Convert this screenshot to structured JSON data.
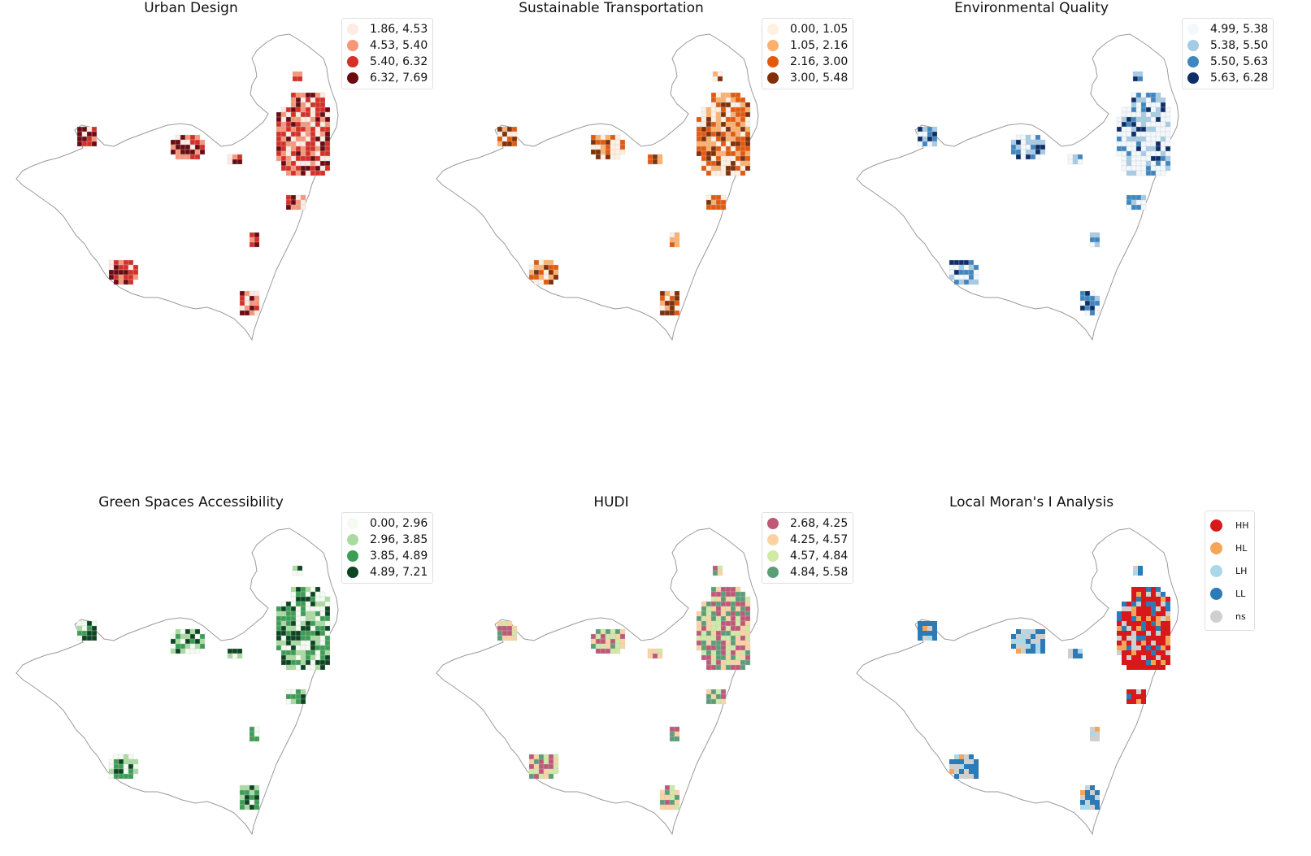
{
  "panels": [
    {
      "title": "Urban Design",
      "palette": [
        "#fdebe4",
        "#f6977a",
        "#d62f27",
        "#6c0a12"
      ],
      "legend": [
        "1.86, 4.53",
        "4.53, 5.40",
        "5.40, 6.32",
        "6.32, 7.69"
      ]
    },
    {
      "title": "Sustainable Transportation",
      "palette": [
        "#fff1e2",
        "#fbb06e",
        "#e35a0e",
        "#80300a"
      ],
      "legend": [
        "0.00, 1.05",
        "1.05, 2.16",
        "2.16, 3.00",
        "3.00, 5.48"
      ]
    },
    {
      "title": "Environmental Quality",
      "palette": [
        "#f3f8fd",
        "#a6cbe4",
        "#3f86c1",
        "#0d2e68"
      ],
      "legend": [
        "4.99, 5.38",
        "5.38, 5.50",
        "5.50, 5.63",
        "5.63, 6.28"
      ]
    },
    {
      "title": "Green Spaces Accessibility",
      "palette": [
        "#f4fbf1",
        "#a9dba1",
        "#3c9e56",
        "#0b4522"
      ],
      "legend": [
        "0.00, 2.96",
        "2.96, 3.85",
        "3.85, 4.89",
        "4.89, 7.21"
      ]
    },
    {
      "title": "HUDI",
      "palette": [
        "#be5877",
        "#fbd3a3",
        "#d0e9a5",
        "#5b9d77"
      ],
      "legend": [
        "2.68, 4.25",
        "4.25, 4.57",
        "4.57, 4.84",
        "4.84, 5.58"
      ]
    },
    {
      "title": "Local Moran's I Analysis",
      "palette": [
        "#d7191c",
        "#f5a55a",
        "#abd8e9",
        "#2c7bb6",
        "#cfcfcf"
      ],
      "legend": [
        "HH",
        "HL",
        "LH",
        "LL",
        "ns"
      ]
    }
  ]
}
